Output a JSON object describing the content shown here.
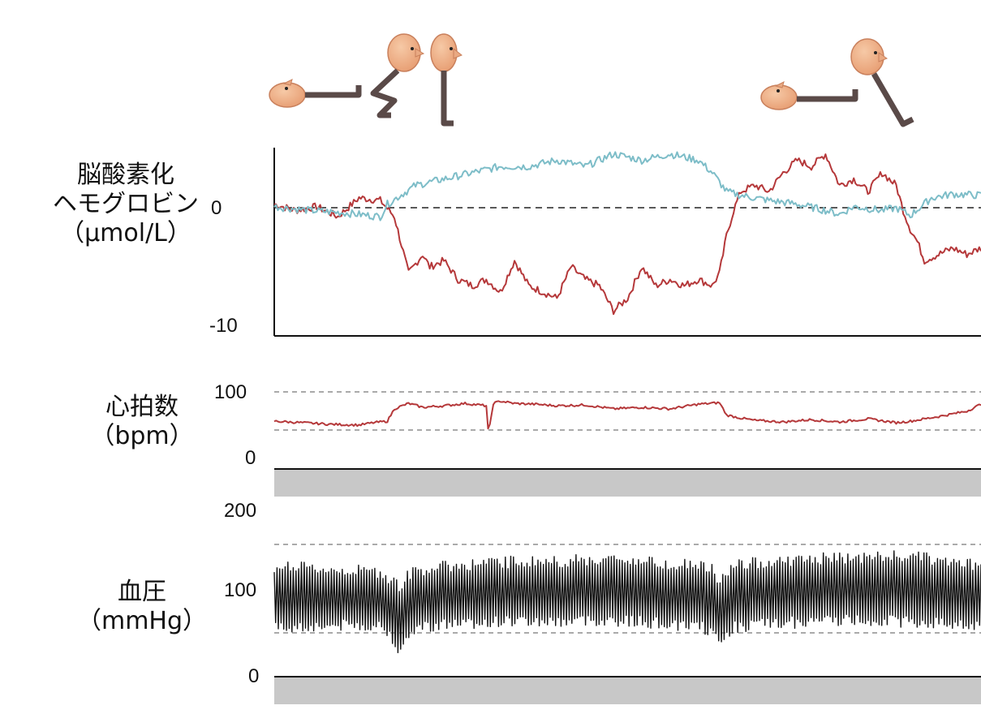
{
  "colors": {
    "oxy_hb": "#b5383a",
    "deoxy_hb": "#7dbdc8",
    "heart_rate": "#b5383a",
    "blood_pressure": "#111111",
    "baseline_band": "#c8c8c8",
    "figure_skin": "#efb088",
    "figure_leg": "#5a4a48"
  },
  "icons": [
    "person-lying-icon",
    "person-squatting-icon",
    "person-standing-icon",
    "person-lying-icon",
    "person-legs-raised-icon"
  ],
  "chart_data": [
    {
      "type": "line",
      "ylabel_lines": [
        "脳酸素化",
        "ヘモグロビン",
        "（μmol/L）"
      ],
      "ticks": [
        "0",
        "-10"
      ],
      "ylim": [
        -10,
        5
      ],
      "zero_line": "dashed",
      "x_range": [
        0,
        100
      ],
      "series": [
        {
          "color_key": "oxy_hb",
          "x": [
            0,
            3,
            6,
            9,
            12,
            15,
            17,
            19,
            21,
            22,
            24,
            26,
            28,
            30,
            32,
            34,
            36,
            38,
            40,
            42,
            44,
            46,
            48,
            50,
            52,
            54,
            56,
            58,
            60,
            62,
            63,
            64,
            65,
            66,
            68,
            70,
            72,
            74,
            76,
            78,
            80,
            82,
            84,
            86,
            88,
            89,
            90,
            91,
            92,
            94,
            96,
            98,
            100
          ],
          "values": [
            0.5,
            0,
            0.3,
            -0.5,
            1,
            0.8,
            -0.5,
            -5,
            -3.5,
            -4.5,
            -4.0,
            -5.5,
            -6.0,
            -5.5,
            -6.5,
            -4.0,
            -6.0,
            -6.5,
            -7.0,
            -4.5,
            -5.5,
            -6.0,
            -8.0,
            -7.0,
            -4.5,
            -6.0,
            -5.5,
            -6.0,
            -5.5,
            -6.0,
            -5.0,
            -2.0,
            0,
            1.5,
            2,
            1.5,
            3,
            4,
            3.5,
            4.5,
            2,
            2.5,
            1.5,
            3,
            2,
            0,
            -1.5,
            -2.5,
            -4.0,
            -3.5,
            -3.0,
            -3.5,
            -3.0
          ]
        },
        {
          "color_key": "deoxy_hb",
          "x": [
            0,
            5,
            10,
            15,
            16,
            20,
            24,
            28,
            32,
            36,
            40,
            44,
            48,
            52,
            56,
            60,
            62,
            64,
            66,
            70,
            74,
            78,
            80,
            82,
            86,
            88,
            90,
            93,
            96,
            100
          ],
          "values": [
            0.3,
            0,
            -0.2,
            -0.5,
            0.5,
            2,
            2.5,
            3.0,
            3.5,
            3.5,
            4,
            3.5,
            4.5,
            4.0,
            4.5,
            4.0,
            3.0,
            1.5,
            1.2,
            0.8,
            0.5,
            0,
            -0.3,
            0.3,
            0,
            0.2,
            -0.4,
            1.0,
            1.3,
            1.2
          ]
        }
      ]
    },
    {
      "type": "line",
      "ylabel_lines": [
        "心拍数",
        "（bpm）"
      ],
      "ticks": [
        "100",
        "0"
      ],
      "ylim": [
        0,
        100
      ],
      "reference_lines": [
        100,
        50
      ],
      "x_range": [
        0,
        100
      ],
      "series": [
        {
          "color_key": "heart_rate",
          "x": [
            0,
            4,
            8,
            12,
            14,
            16,
            17,
            19,
            21,
            24,
            27,
            29,
            30,
            30.3,
            31,
            32,
            34,
            37,
            40,
            44,
            48,
            52,
            56,
            60,
            63,
            64,
            66,
            68,
            72,
            76,
            80,
            84,
            88,
            90,
            94,
            98,
            100
          ],
          "values": [
            62,
            60,
            58,
            57,
            60,
            62,
            78,
            85,
            80,
            82,
            85,
            83,
            82,
            45,
            85,
            88,
            85,
            84,
            82,
            83,
            78,
            80,
            78,
            84,
            86,
            70,
            66,
            63,
            61,
            64,
            61,
            65,
            60,
            62,
            68,
            75,
            84
          ]
        }
      ]
    },
    {
      "type": "line",
      "ylabel_lines": [
        "血圧",
        "（mmHg）"
      ],
      "ticks": [
        "200",
        "100",
        "0"
      ],
      "ylim": [
        0,
        200
      ],
      "reference_lines": [
        150,
        50
      ],
      "x_range": [
        0,
        100
      ],
      "series": [
        {
          "name_hidden": true,
          "color_key": "blood_pressure",
          "envelope": {
            "x": [
              0,
              5,
              10,
              15,
              17,
              18,
              19,
              20,
              25,
              30,
              35,
              40,
              45,
              50,
              55,
              60,
              62,
              63,
              64,
              65,
              70,
              75,
              80,
              85,
              90,
              95,
              100
            ],
            "systolic": [
              125,
              122,
              120,
              118,
              108,
              100,
              115,
              120,
              125,
              128,
              130,
              130,
              132,
              132,
              128,
              126,
              120,
              105,
              118,
              125,
              130,
              132,
              134,
              135,
              136,
              130,
              125
            ],
            "diastolic": [
              55,
              57,
              58,
              58,
              42,
              25,
              45,
              56,
              60,
              62,
              63,
              62,
              64,
              63,
              60,
              58,
              50,
              35,
              48,
              56,
              60,
              62,
              64,
              64,
              62,
              60,
              58
            ]
          }
        }
      ]
    }
  ]
}
